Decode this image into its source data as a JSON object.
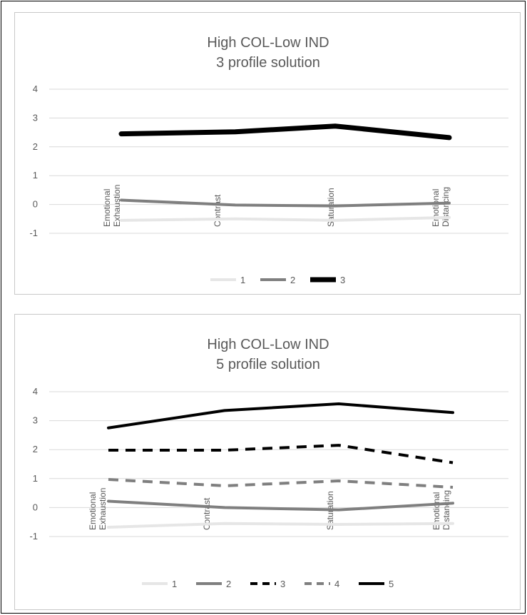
{
  "chart_data": [
    {
      "type": "line",
      "title": "High COL-Low IND",
      "subtitle": "3 profile solution",
      "categories": [
        [
          "Emotional",
          "Exhaustion"
        ],
        [
          "Contrast"
        ],
        [
          "Saturation"
        ],
        [
          "Emotional",
          "Distancing"
        ]
      ],
      "ylim": [
        -1,
        4
      ],
      "yticks": [
        -1,
        0,
        1,
        2,
        3,
        4
      ],
      "grid": true,
      "legend": "bottom",
      "series": [
        {
          "name": "1",
          "values": [
            -0.55,
            -0.5,
            -0.55,
            -0.45
          ],
          "color": "#e6e6e6",
          "dash": "solid",
          "weight": "medium"
        },
        {
          "name": "2",
          "values": [
            0.15,
            -0.02,
            -0.05,
            0.05
          ],
          "color": "#7f7f7f",
          "dash": "solid",
          "weight": "medium"
        },
        {
          "name": "3",
          "values": [
            2.45,
            2.52,
            2.72,
            2.32
          ],
          "color": "#000000",
          "dash": "solid",
          "weight": "heavy"
        }
      ]
    },
    {
      "type": "line",
      "title": "High COL-Low IND",
      "subtitle": "5 profile solution",
      "categories": [
        [
          "Emotional",
          "Exhaustion"
        ],
        [
          "Contrast"
        ],
        [
          "Saturation"
        ],
        [
          "Emotional",
          "Distancing"
        ]
      ],
      "ylim": [
        -1,
        4
      ],
      "yticks": [
        -1,
        0,
        1,
        2,
        3,
        4
      ],
      "grid": true,
      "legend": "bottom",
      "series": [
        {
          "name": "1",
          "values": [
            -0.68,
            -0.55,
            -0.58,
            -0.55
          ],
          "color": "#e6e6e6",
          "dash": "solid",
          "weight": "medium"
        },
        {
          "name": "2",
          "values": [
            0.22,
            0.0,
            -0.08,
            0.15
          ],
          "color": "#7f7f7f",
          "dash": "solid",
          "weight": "medium"
        },
        {
          "name": "3",
          "values": [
            1.98,
            1.98,
            2.15,
            1.55
          ],
          "color": "#000000",
          "dash": "dashed",
          "weight": "medium"
        },
        {
          "name": "4",
          "values": [
            0.97,
            0.75,
            0.92,
            0.7
          ],
          "color": "#7f7f7f",
          "dash": "dashed",
          "weight": "medium"
        },
        {
          "name": "5",
          "values": [
            2.75,
            3.35,
            3.58,
            3.28
          ],
          "color": "#000000",
          "dash": "solid",
          "weight": "medium"
        }
      ]
    }
  ]
}
